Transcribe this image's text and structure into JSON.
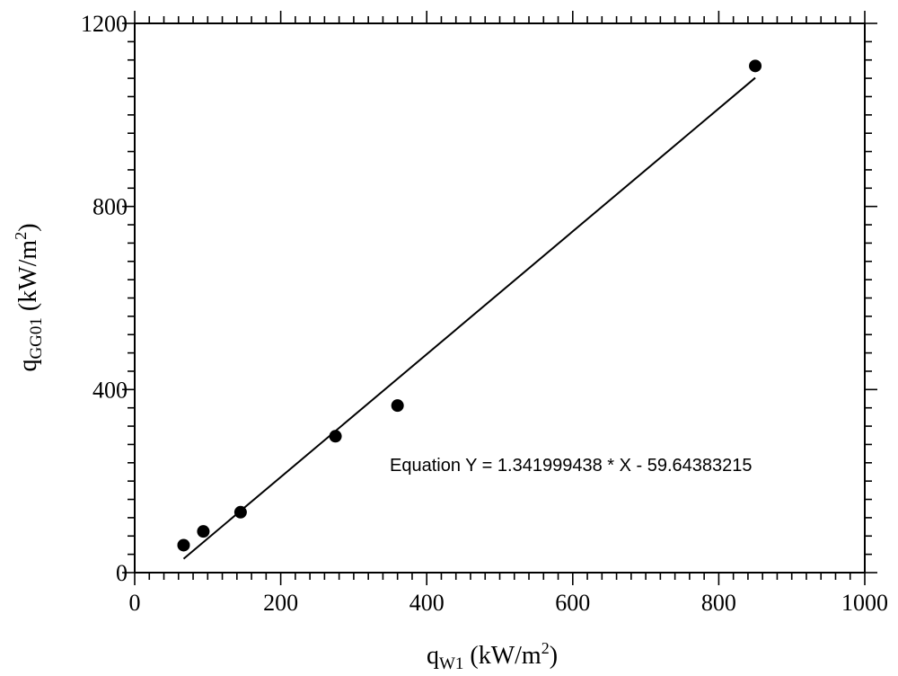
{
  "chart_data": {
    "type": "scatter",
    "title": "",
    "xlabel": {
      "main": "q",
      "sub": "W1",
      "unit_open": " (kW/m",
      "unit_sup": "2",
      "unit_close": ")"
    },
    "ylabel": {
      "main": "q",
      "sub": "GG01",
      "unit_open": " (kW/m",
      "unit_sup": "2",
      "unit_close": ")"
    },
    "xlim": [
      0,
      1000
    ],
    "ylim": [
      0,
      1200
    ],
    "x_ticks": [
      "0",
      "200",
      "400",
      "600",
      "800",
      "1000"
    ],
    "y_ticks": [
      "0",
      "400",
      "800",
      "1200"
    ],
    "grid": false,
    "series": [
      {
        "type": "scatter",
        "points": [
          {
            "x": 67,
            "y": 60
          },
          {
            "x": 94,
            "y": 90
          },
          {
            "x": 145,
            "y": 132
          },
          {
            "x": 275,
            "y": 298
          },
          {
            "x": 360,
            "y": 365
          },
          {
            "x": 850,
            "y": 1107
          }
        ]
      },
      {
        "type": "line",
        "slope": 1.341999438,
        "intercept": -59.64383215,
        "x_range": [
          67,
          850
        ]
      }
    ],
    "annotation": "Equation Y = 1.341999438 * X - 59.64383215"
  }
}
